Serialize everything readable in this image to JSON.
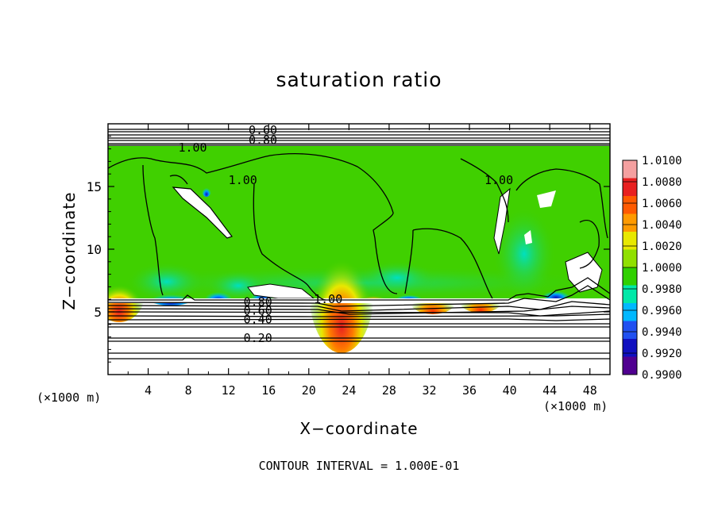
{
  "chart_data": {
    "type": "heatmap",
    "title": "saturation ratio",
    "xlabel": "X−coordinate",
    "ylabel": "Z−coordinate",
    "x_unit": "(×1000 m)",
    "xlim": [
      0,
      50
    ],
    "ylim": [
      0,
      20
    ],
    "x_ticks": [
      "4",
      "8",
      "12",
      "16",
      "20",
      "24",
      "28",
      "32",
      "36",
      "40",
      "44",
      "48"
    ],
    "y_ticks": [
      "5",
      "10",
      "15"
    ],
    "colorbar": {
      "levels": [
        "1.0100",
        "1.0080",
        "1.0060",
        "1.0040",
        "1.0020",
        "1.0000",
        "0.9980",
        "0.9960",
        "0.9940",
        "0.9920",
        "0.9900"
      ],
      "colors": [
        "#f4a0a0",
        "#e82020",
        "#ff5a00",
        "#ff9a00",
        "#e8e800",
        "#90e000",
        "#30d000",
        "#00e8a8",
        "#00b8ff",
        "#2050f0",
        "#1010c0",
        "#500090"
      ]
    },
    "contour_labels": [
      {
        "text": "0.60",
        "x": 14,
        "y": 19.5
      },
      {
        "text": "0.80",
        "x": 14,
        "y": 18.7
      },
      {
        "text": "1.00",
        "x": 7,
        "y": 18.1
      },
      {
        "text": "1.00",
        "x": 12,
        "y": 15.5
      },
      {
        "text": "1.00",
        "x": 37.5,
        "y": 15.5
      },
      {
        "text": "1.00",
        "x": 20.5,
        "y": 6.0
      },
      {
        "text": "0.80",
        "x": 13.5,
        "y": 5.8
      },
      {
        "text": "0.60",
        "x": 13.5,
        "y": 5.1
      },
      {
        "text": "0.40",
        "x": 13.5,
        "y": 4.4
      },
      {
        "text": "0.20",
        "x": 13.5,
        "y": 2.9
      }
    ],
    "contour_interval_note": "CONTOUR INTERVAL =  1.000E-01"
  }
}
